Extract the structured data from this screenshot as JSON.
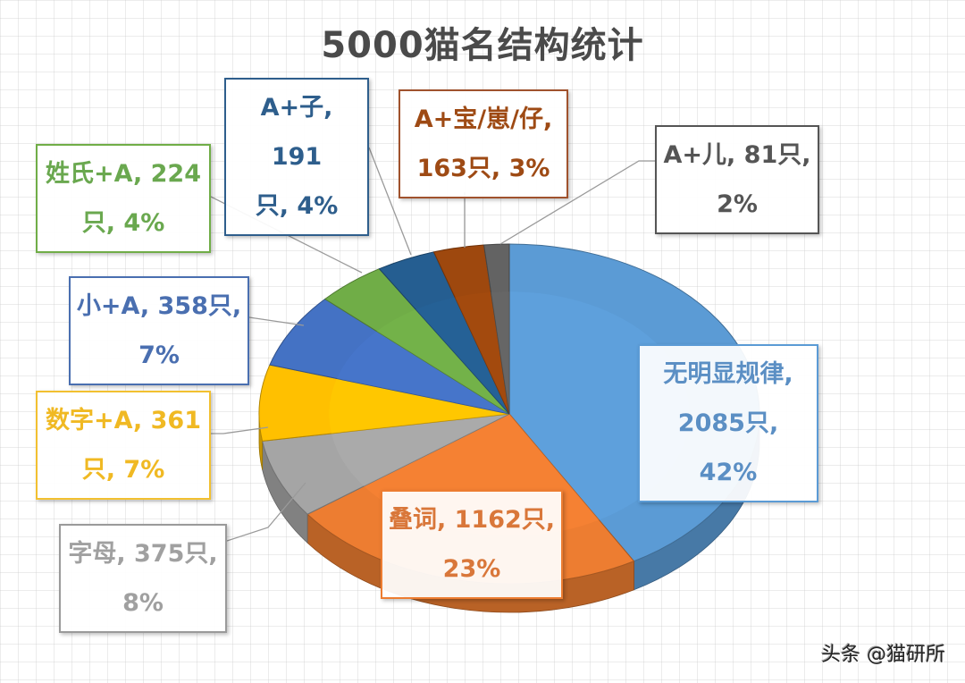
{
  "title": "5000猫名结构统计",
  "watermark": "头条 @猫研所",
  "chart_data": {
    "type": "pie",
    "style": "3d",
    "title": "5000猫名结构统计",
    "total": 5000,
    "unit": "只",
    "start_angle": "12 o'clock, clockwise",
    "categories": [
      "无明显规律",
      "叠词",
      "字母",
      "数字+A",
      "小+A",
      "姓氏+A",
      "A+子",
      "A+宝/崽/仔",
      "A+儿"
    ],
    "values": [
      2085,
      1162,
      375,
      361,
      358,
      224,
      191,
      163,
      81
    ],
    "percentages": [
      42,
      23,
      8,
      7,
      7,
      4,
      4,
      3,
      2
    ],
    "colors": [
      "#5b9bd5",
      "#ed7d31",
      "#a5a5a5",
      "#ffc000",
      "#4472c4",
      "#70ad47",
      "#255e91",
      "#9e480e",
      "#636363"
    ],
    "legend": "none (data labels with leader lines)"
  },
  "labels": [
    {
      "line1": "无明显规律,",
      "line2": "2085只, 42%",
      "color": "#5b8fc4",
      "border": "#5b9bd5"
    },
    {
      "line1": "叠词, 1162只,",
      "line2": "23%",
      "color": "#d9773a",
      "border": "#ed7d31"
    },
    {
      "line1": "字母, 375只,",
      "line2": "8%",
      "color": "#a0a0a0",
      "border": "#9a9a9a"
    },
    {
      "line1": "数字+A, 361",
      "line2": "只, 7%",
      "color": "#f0b923",
      "border": "#f2c030"
    },
    {
      "line1": "小+A, 358只,",
      "line2": "7%",
      "color": "#4a6fb0",
      "border": "#4a6fb0"
    },
    {
      "line1": "姓氏+A, 224",
      "line2": "只, 4%",
      "color": "#6aa84f",
      "border": "#70ad47"
    },
    {
      "line1": "A+子, 191",
      "line2": "只, 4%",
      "color": "#2e5e8c",
      "border": "#2e5e8c"
    },
    {
      "line1": "A+宝/崽/仔,",
      "line2": "163只, 3%",
      "color": "#9e4a14",
      "border": "#a0522d"
    },
    {
      "line1": "A+儿, 81只,",
      "line2": "2%",
      "color": "#555555",
      "border": "#555555"
    }
  ]
}
